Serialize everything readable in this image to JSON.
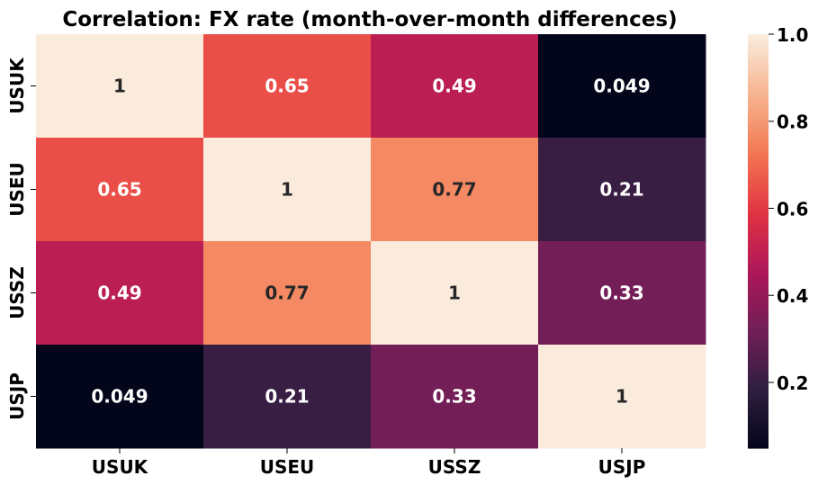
{
  "chart_data": {
    "type": "heatmap",
    "title": "Correlation: FX rate (month-over-month differences)",
    "xlabel": "",
    "ylabel": "",
    "x_labels": [
      "USUK",
      "USEU",
      "USSZ",
      "USJP"
    ],
    "y_labels": [
      "USUK",
      "USEU",
      "USSZ",
      "USJP"
    ],
    "values": [
      [
        1,
        0.65,
        0.49,
        0.049
      ],
      [
        0.65,
        1,
        0.77,
        0.21
      ],
      [
        0.49,
        0.77,
        1,
        0.33
      ],
      [
        0.049,
        0.21,
        0.33,
        1
      ]
    ],
    "annotations": [
      [
        "1",
        "0.65",
        "0.49",
        "0.049"
      ],
      [
        "0.65",
        "1",
        "0.77",
        "0.21"
      ],
      [
        "0.49",
        "0.77",
        "1",
        "0.33"
      ],
      [
        "0.049",
        "0.21",
        "0.33",
        "1"
      ]
    ],
    "colorbar": {
      "range": [
        0.049,
        1.0
      ],
      "ticks": [
        0.2,
        0.4,
        0.6,
        0.8,
        1.0
      ],
      "tick_labels": [
        "0.2",
        "0.4",
        "0.6",
        "0.8",
        "1.0"
      ],
      "colormap": "rocket",
      "colormap_stops": [
        "#03051a",
        "#2d1e3e",
        "#701f57",
        "#ad1759",
        "#e13342",
        "#f37651",
        "#f6b48f",
        "#faebdd"
      ]
    }
  }
}
